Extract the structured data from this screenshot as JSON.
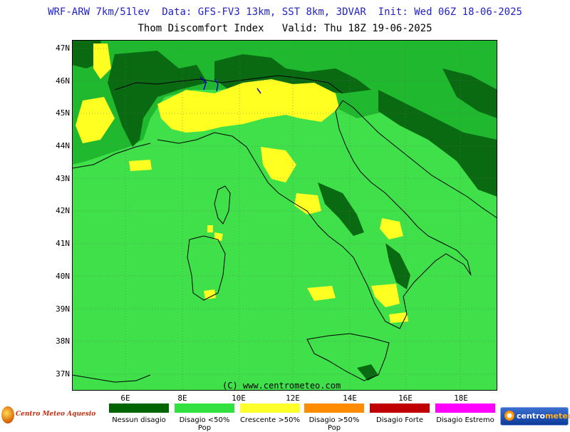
{
  "header": {
    "line1": "WRF-ARW 7km/51lev  Data: GFS-FV3 13km, SST 8km, 3DVAR  Init: Wed 06Z 18-06-2025",
    "line2": "Thom Discomfort Index   Valid: Thu 18Z 19-06-2025"
  },
  "map": {
    "lat_labels": [
      "47N",
      "46N",
      "45N",
      "44N",
      "43N",
      "42N",
      "41N",
      "40N",
      "39N",
      "38N",
      "37N"
    ],
    "lon_labels": [
      "6E",
      "8E",
      "10E",
      "12E",
      "14E",
      "16E",
      "18E"
    ],
    "credit": "(C) www.centrometeo.com",
    "colors": {
      "ocean": "#3fe04a",
      "dark_green": "#0a6a12",
      "mid_green": "#129f2a",
      "yellow": "#ffff22",
      "coast": "#000000",
      "lakes": "#0000cc"
    }
  },
  "legend": {
    "items": [
      {
        "label": "Nessun disagio",
        "color": "#006400"
      },
      {
        "label": "Disagio <50% Pop",
        "color": "#32e040"
      },
      {
        "label": "Crescente >50%",
        "color": "#ffff2a"
      },
      {
        "label": "Disagio >50% Pop",
        "color": "#ff8c00"
      },
      {
        "label": "Disagio Forte",
        "color": "#c00000"
      },
      {
        "label": "Disagio Estremo",
        "color": "#ff00ff"
      }
    ]
  },
  "logos": {
    "left_text": "Centro Meteo Aquesio",
    "right_text_a": "centro",
    "right_text_b": "meteo"
  }
}
